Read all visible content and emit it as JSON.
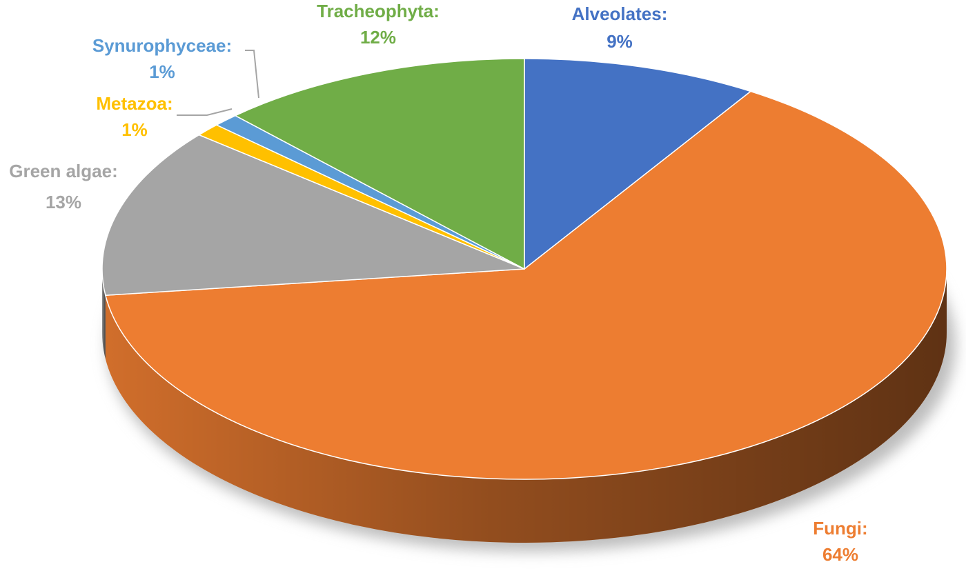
{
  "chart_data": {
    "type": "pie",
    "categories": [
      "Alveolates:",
      "Fungi:",
      "Green algae:",
      "Metazoa:",
      "Synurophyceae:",
      "Tracheophyta:"
    ],
    "values": [
      9,
      64,
      13,
      1,
      1,
      12
    ],
    "value_labels": [
      "9%",
      "64%",
      "13%",
      "1%",
      "1%",
      "12%"
    ],
    "colors": [
      "#4472c4",
      "#ed7d31",
      "#a5a5a5",
      "#ffc000",
      "#5b9bd5",
      "#70ad47"
    ]
  }
}
